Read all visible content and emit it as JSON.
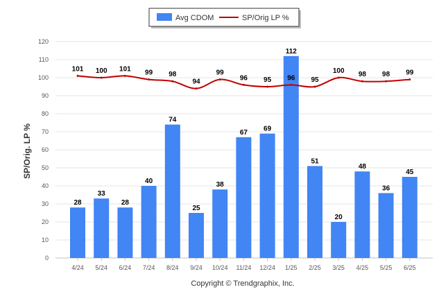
{
  "chart_data": {
    "type": "bar",
    "title": "",
    "xlabel": "",
    "ylabel": "SP/Orig. LP %",
    "ylim": [
      0,
      120
    ],
    "yticks": [
      0,
      10,
      20,
      30,
      40,
      50,
      60,
      70,
      80,
      90,
      100,
      110,
      120
    ],
    "grid": true,
    "legend_position": "top-center",
    "categories": [
      "4/24",
      "5/24",
      "6/24",
      "7/24",
      "8/24",
      "9/24",
      "10/24",
      "11/24",
      "12/24",
      "1/25",
      "2/25",
      "3/25",
      "4/25",
      "5/25",
      "6/25"
    ],
    "series": [
      {
        "name": "Avg CDOM",
        "type": "bar",
        "color": "#4285f4",
        "values": [
          28,
          33,
          28,
          40,
          74,
          25,
          38,
          67,
          69,
          112,
          51,
          20,
          48,
          36,
          45
        ]
      },
      {
        "name": "SP/Orig LP %",
        "type": "line",
        "color": "#c00000",
        "values": [
          101,
          100,
          101,
          99,
          98,
          94,
          99,
          96,
          95,
          96,
          95,
          100,
          98,
          98,
          99
        ]
      }
    ]
  },
  "footer": {
    "copyright": "Copyright © Trendgraphix, Inc."
  }
}
